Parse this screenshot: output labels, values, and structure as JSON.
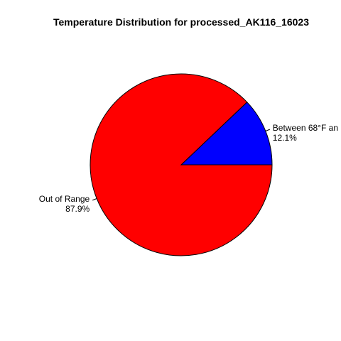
{
  "chart_data": {
    "type": "pie",
    "title": "Temperature Distribution for processed_AK116_16023",
    "slices": [
      {
        "label": "Between 68°F an",
        "percent_label": "12.1%",
        "value": 12.1,
        "color": "#0000FF"
      },
      {
        "label": "Out of Range",
        "percent_label": "87.9%",
        "value": 87.9,
        "color": "#FF0000"
      }
    ],
    "outline_color": "#000000",
    "start_angle_deg": 0,
    "direction": "counterclockwise"
  }
}
